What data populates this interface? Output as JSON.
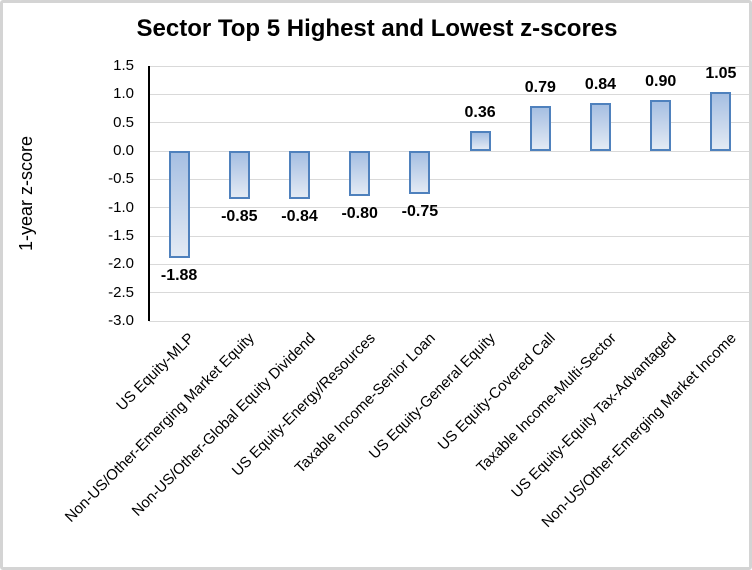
{
  "chart_data": {
    "type": "bar",
    "title": "Sector Top 5 Highest and Lowest z-scores",
    "xlabel": "",
    "ylabel": "1-year z-score",
    "categories": [
      "US Equity-MLP",
      "Non-US/Other-Emerging Market Equity",
      "Non-US/Other-Global Equity Dividend",
      "US Equity-Energy/Resources",
      "Taxable Income-Senior Loan",
      "US Equity-General Equity",
      "US Equity-Covered Call",
      "Taxable Income-Multi-Sector",
      "US Equity-Equity Tax-Advantaged",
      "Non-US/Other-Emerging Market Income"
    ],
    "values": [
      -1.88,
      -0.85,
      -0.84,
      -0.8,
      -0.75,
      0.36,
      0.79,
      0.84,
      0.9,
      1.05
    ],
    "value_labels": [
      "-1.88",
      "-0.85",
      "-0.84",
      "-0.80",
      "-0.75",
      "0.36",
      "0.79",
      "0.84",
      "0.90",
      "1.05"
    ],
    "ylim": [
      -3.0,
      1.5
    ],
    "y_tick_labels": [
      "1.5",
      "1.0",
      "0.5",
      "0.0",
      "-0.5",
      "-1.0",
      "-1.5",
      "-2.0",
      "-2.5",
      "-3.0"
    ],
    "grid": true,
    "legend": "none",
    "colors": {
      "bar_border": "#4F81BD",
      "bar_fill_top": "#A6BFE2",
      "bar_fill_bottom": "#E3EAF4",
      "gridline": "#D9D9D9",
      "axis_line": "#000000",
      "text": "#000000",
      "frame_border": "#D4D4D4",
      "background": "#FFFFFF"
    }
  }
}
